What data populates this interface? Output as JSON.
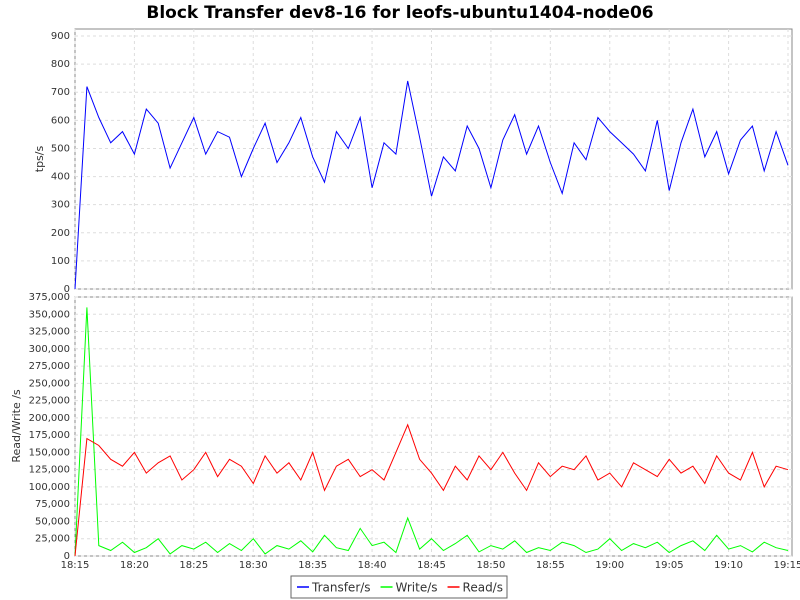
{
  "chart_data": [
    {
      "type": "line",
      "title": "Block Transfer dev8-16 for leofs-ubuntu1404-node06",
      "ylabel": "tps/s",
      "x": [
        "18:15",
        "18:16",
        "18:17",
        "18:18",
        "18:19",
        "18:20",
        "18:21",
        "18:22",
        "18:23",
        "18:24",
        "18:25",
        "18:26",
        "18:27",
        "18:28",
        "18:29",
        "18:30",
        "18:31",
        "18:32",
        "18:33",
        "18:34",
        "18:35",
        "18:36",
        "18:37",
        "18:38",
        "18:39",
        "18:40",
        "18:41",
        "18:42",
        "18:43",
        "18:44",
        "18:45",
        "18:46",
        "18:47",
        "18:48",
        "18:49",
        "18:50",
        "18:51",
        "18:52",
        "18:53",
        "18:54",
        "18:55",
        "18:56",
        "18:57",
        "18:58",
        "18:59",
        "19:00",
        "19:01",
        "19:02",
        "19:03",
        "19:04",
        "19:05",
        "19:06",
        "19:07",
        "19:08",
        "19:09",
        "19:10",
        "19:11",
        "19:12",
        "19:13",
        "19:14",
        "19:15"
      ],
      "series": [
        {
          "name": "Transfer/s",
          "color": "#0000ff",
          "values": [
            0,
            720,
            610,
            520,
            560,
            480,
            640,
            590,
            430,
            520,
            610,
            480,
            560,
            540,
            400,
            500,
            590,
            450,
            520,
            610,
            470,
            380,
            560,
            500,
            610,
            360,
            520,
            480,
            740,
            540,
            330,
            470,
            420,
            580,
            500,
            360,
            530,
            620,
            480,
            580,
            450,
            340,
            520,
            460,
            610,
            560,
            520,
            480,
            420,
            600,
            350,
            520,
            640,
            470,
            560,
            410,
            530,
            580,
            420,
            560,
            440
          ]
        }
      ],
      "xlim": [
        "18:15",
        "19:15"
      ],
      "ylim": [
        0,
        925
      ],
      "yticks": [
        0,
        100,
        200,
        300,
        400,
        500,
        600,
        700,
        800,
        900
      ],
      "grid": true
    },
    {
      "type": "line",
      "ylabel": "Read/Write /s",
      "x": [
        "18:15",
        "18:16",
        "18:17",
        "18:18",
        "18:19",
        "18:20",
        "18:21",
        "18:22",
        "18:23",
        "18:24",
        "18:25",
        "18:26",
        "18:27",
        "18:28",
        "18:29",
        "18:30",
        "18:31",
        "18:32",
        "18:33",
        "18:34",
        "18:35",
        "18:36",
        "18:37",
        "18:38",
        "18:39",
        "18:40",
        "18:41",
        "18:42",
        "18:43",
        "18:44",
        "18:45",
        "18:46",
        "18:47",
        "18:48",
        "18:49",
        "18:50",
        "18:51",
        "18:52",
        "18:53",
        "18:54",
        "18:55",
        "18:56",
        "18:57",
        "18:58",
        "18:59",
        "19:00",
        "19:01",
        "19:02",
        "19:03",
        "19:04",
        "19:05",
        "19:06",
        "19:07",
        "19:08",
        "19:09",
        "19:10",
        "19:11",
        "19:12",
        "19:13",
        "19:14",
        "19:15"
      ],
      "series": [
        {
          "name": "Write/s",
          "color": "#00ff00",
          "values": [
            0,
            360000,
            15000,
            8000,
            20000,
            5000,
            12000,
            25000,
            3000,
            15000,
            10000,
            20000,
            5000,
            18000,
            8000,
            25000,
            3000,
            15000,
            10000,
            22000,
            6000,
            30000,
            12000,
            8000,
            40000,
            15000,
            20000,
            5000,
            55000,
            10000,
            25000,
            8000,
            18000,
            30000,
            6000,
            15000,
            10000,
            22000,
            5000,
            12000,
            8000,
            20000,
            15000,
            5000,
            10000,
            25000,
            8000,
            18000,
            12000,
            20000,
            5000,
            15000,
            22000,
            8000,
            30000,
            10000,
            15000,
            6000,
            20000,
            12000,
            8000
          ]
        },
        {
          "name": "Read/s",
          "color": "#ff0000",
          "values": [
            0,
            170000,
            160000,
            140000,
            130000,
            150000,
            120000,
            135000,
            145000,
            110000,
            125000,
            150000,
            115000,
            140000,
            130000,
            105000,
            145000,
            120000,
            135000,
            110000,
            150000,
            95000,
            130000,
            140000,
            115000,
            125000,
            110000,
            150000,
            190000,
            140000,
            120000,
            95000,
            130000,
            110000,
            145000,
            125000,
            150000,
            120000,
            95000,
            135000,
            115000,
            130000,
            125000,
            145000,
            110000,
            120000,
            100000,
            135000,
            125000,
            115000,
            140000,
            120000,
            130000,
            105000,
            145000,
            120000,
            110000,
            150000,
            100000,
            130000,
            125000
          ]
        }
      ],
      "xlim": [
        "18:15",
        "19:15"
      ],
      "xticks": [
        "18:15",
        "18:20",
        "18:25",
        "18:30",
        "18:35",
        "18:40",
        "18:45",
        "18:50",
        "18:55",
        "19:00",
        "19:05",
        "19:10",
        "19:15"
      ],
      "ylim": [
        0,
        375000
      ],
      "yticks": [
        0,
        {
          "value": 25000,
          "label": "25,000"
        },
        {
          "value": 50000,
          "label": "50,000"
        },
        {
          "value": 75000,
          "label": "75,000"
        },
        {
          "value": 100000,
          "label": "100,000"
        },
        {
          "value": 125000,
          "label": "125,000"
        },
        {
          "value": 150000,
          "label": "150,000"
        },
        {
          "value": 175000,
          "label": "175,000"
        },
        {
          "value": 200000,
          "label": "200,000"
        },
        {
          "value": 225000,
          "label": "225,000"
        },
        {
          "value": 250000,
          "label": "250,000"
        },
        {
          "value": 275000,
          "label": "275,000"
        },
        {
          "value": 300000,
          "label": "300,000"
        },
        {
          "value": 325000,
          "label": "325,000"
        },
        {
          "value": 350000,
          "label": "350,000"
        },
        {
          "value": 375000,
          "label": "375,000"
        }
      ],
      "grid": true
    }
  ]
}
